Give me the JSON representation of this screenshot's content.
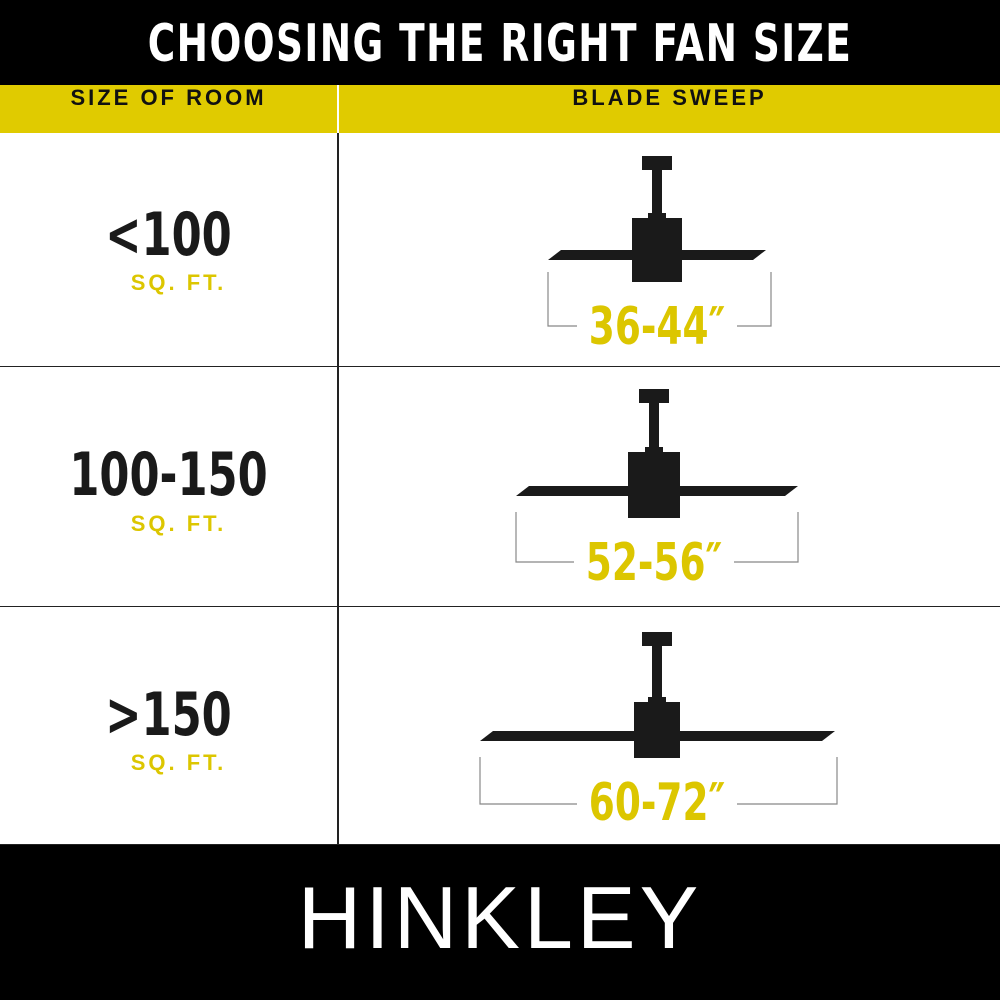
{
  "title": "CHOOSING THE RIGHT FAN SIZE",
  "table": {
    "headers": [
      "SIZE OF ROOM",
      "BLADE SWEEP"
    ],
    "rows": [
      {
        "room_size": "<100",
        "unit": "SQ. FT.",
        "blade_sweep": "36-44″"
      },
      {
        "room_size": "100-150",
        "unit": "SQ. FT.",
        "blade_sweep": "52-56″"
      },
      {
        "room_size": ">150",
        "unit": "SQ. FT.",
        "blade_sweep": "60-72″"
      }
    ]
  },
  "brand": "HINKLEY",
  "colors": {
    "accent": "#e0cb00",
    "background": "#000000",
    "fan": "#1a1a1a"
  },
  "icons": [
    "ceiling-fan-icon"
  ]
}
